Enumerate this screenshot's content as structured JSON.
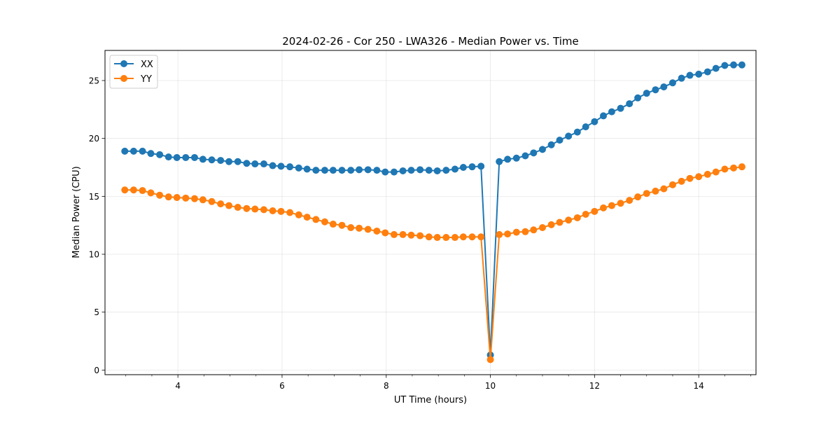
{
  "chart_data": {
    "type": "line",
    "title": "2024-02-26 - Cor 250 - LWA326 - Median Power vs. Time",
    "xlabel": "UT Time (hours)",
    "ylabel": "Median Power (CPU)",
    "xlim": [
      2.6,
      15.1
    ],
    "ylim": [
      -0.4,
      27.6
    ],
    "xticks": [
      4,
      6,
      8,
      10,
      12,
      14
    ],
    "yticks": [
      0,
      5,
      10,
      15,
      20,
      25
    ],
    "grid": true,
    "legend_position": "upper-left",
    "x": [
      2.98,
      3.15,
      3.32,
      3.48,
      3.65,
      3.82,
      3.98,
      4.15,
      4.32,
      4.48,
      4.65,
      4.82,
      4.98,
      5.15,
      5.32,
      5.48,
      5.65,
      5.82,
      5.98,
      6.15,
      6.32,
      6.48,
      6.65,
      6.82,
      6.98,
      7.15,
      7.32,
      7.48,
      7.65,
      7.82,
      7.98,
      8.15,
      8.32,
      8.48,
      8.65,
      8.82,
      8.98,
      9.15,
      9.32,
      9.48,
      9.65,
      9.82,
      10.0,
      10.17,
      10.33,
      10.5,
      10.67,
      10.83,
      11.0,
      11.17,
      11.33,
      11.5,
      11.67,
      11.83,
      12.0,
      12.17,
      12.33,
      12.5,
      12.67,
      12.83,
      13.0,
      13.17,
      13.33,
      13.5,
      13.67,
      13.83,
      14.0,
      14.17,
      14.33,
      14.5,
      14.67,
      14.83
    ],
    "series": [
      {
        "name": "XX",
        "color": "#1f77b4",
        "values": [
          18.9,
          18.9,
          18.9,
          18.7,
          18.6,
          18.4,
          18.35,
          18.35,
          18.35,
          18.2,
          18.15,
          18.1,
          18.0,
          18.0,
          17.85,
          17.8,
          17.8,
          17.65,
          17.6,
          17.55,
          17.45,
          17.35,
          17.25,
          17.25,
          17.25,
          17.25,
          17.25,
          17.3,
          17.3,
          17.25,
          17.1,
          17.1,
          17.2,
          17.25,
          17.3,
          17.25,
          17.2,
          17.25,
          17.35,
          17.5,
          17.55,
          17.6,
          1.3,
          18.0,
          18.2,
          18.3,
          18.5,
          18.75,
          19.05,
          19.45,
          19.85,
          20.2,
          20.55,
          21.0,
          21.45,
          21.95,
          22.3,
          22.6,
          23.0,
          23.5,
          23.9,
          24.2,
          24.45,
          24.8,
          25.2,
          25.45,
          25.55,
          25.75,
          26.05,
          26.3,
          26.35,
          26.35
        ]
      },
      {
        "name": "YY",
        "color": "#ff7f0e",
        "values": [
          15.55,
          15.55,
          15.5,
          15.3,
          15.1,
          14.95,
          14.9,
          14.85,
          14.8,
          14.7,
          14.55,
          14.35,
          14.2,
          14.05,
          13.95,
          13.9,
          13.85,
          13.75,
          13.7,
          13.6,
          13.4,
          13.2,
          13.0,
          12.8,
          12.6,
          12.5,
          12.3,
          12.25,
          12.15,
          12.0,
          11.85,
          11.7,
          11.7,
          11.65,
          11.6,
          11.5,
          11.45,
          11.45,
          11.45,
          11.5,
          11.5,
          11.5,
          0.9,
          11.7,
          11.75,
          11.9,
          11.95,
          12.1,
          12.3,
          12.55,
          12.75,
          12.95,
          13.15,
          13.45,
          13.7,
          14.0,
          14.2,
          14.4,
          14.65,
          14.95,
          15.25,
          15.45,
          15.65,
          16.0,
          16.3,
          16.55,
          16.7,
          16.9,
          17.1,
          17.35,
          17.45,
          17.55
        ]
      }
    ]
  }
}
